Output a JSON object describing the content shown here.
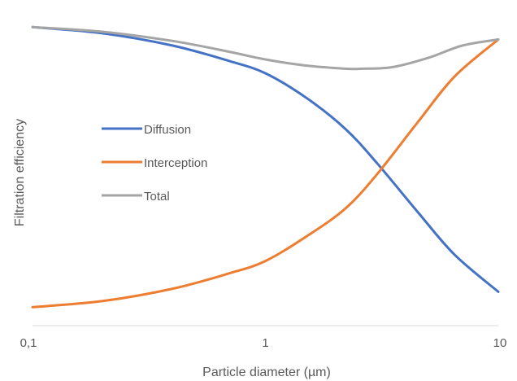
{
  "chart_data": {
    "type": "line",
    "title": "",
    "xlabel": "Particle diameter (µm)",
    "ylabel": "Filtration efficiency",
    "x_scale": "log",
    "xlim": [
      0.1,
      10
    ],
    "ylim": [
      0,
      1
    ],
    "x_ticks": [
      {
        "value": 0.1,
        "label": "0,1"
      },
      {
        "value": 1,
        "label": "1"
      },
      {
        "value": 10,
        "label": "10"
      }
    ],
    "y_ticks_shown": false,
    "grid": false,
    "legend_position": "center-left",
    "series": [
      {
        "name": "Diffusion",
        "color": "#4472C4",
        "x": [
          0.1,
          0.2,
          0.4,
          0.7,
          1,
          1.5,
          2.2,
          3,
          4.5,
          6.5,
          10
        ],
        "y": [
          0.97,
          0.95,
          0.91,
          0.86,
          0.82,
          0.74,
          0.64,
          0.53,
          0.37,
          0.23,
          0.11
        ]
      },
      {
        "name": "Interception",
        "color": "#ED7D31",
        "x": [
          0.1,
          0.2,
          0.4,
          0.7,
          1,
          1.5,
          2.2,
          3,
          4.5,
          6.5,
          10
        ],
        "y": [
          0.06,
          0.08,
          0.12,
          0.17,
          0.21,
          0.29,
          0.38,
          0.49,
          0.66,
          0.81,
          0.93
        ]
      },
      {
        "name": "Total",
        "color": "#A5A5A5",
        "x": [
          0.1,
          0.2,
          0.4,
          0.7,
          1,
          1.5,
          2.2,
          2.6,
          3.5,
          5,
          7,
          10
        ],
        "y": [
          0.97,
          0.955,
          0.925,
          0.89,
          0.865,
          0.845,
          0.835,
          0.835,
          0.84,
          0.87,
          0.91,
          0.93
        ]
      }
    ]
  }
}
